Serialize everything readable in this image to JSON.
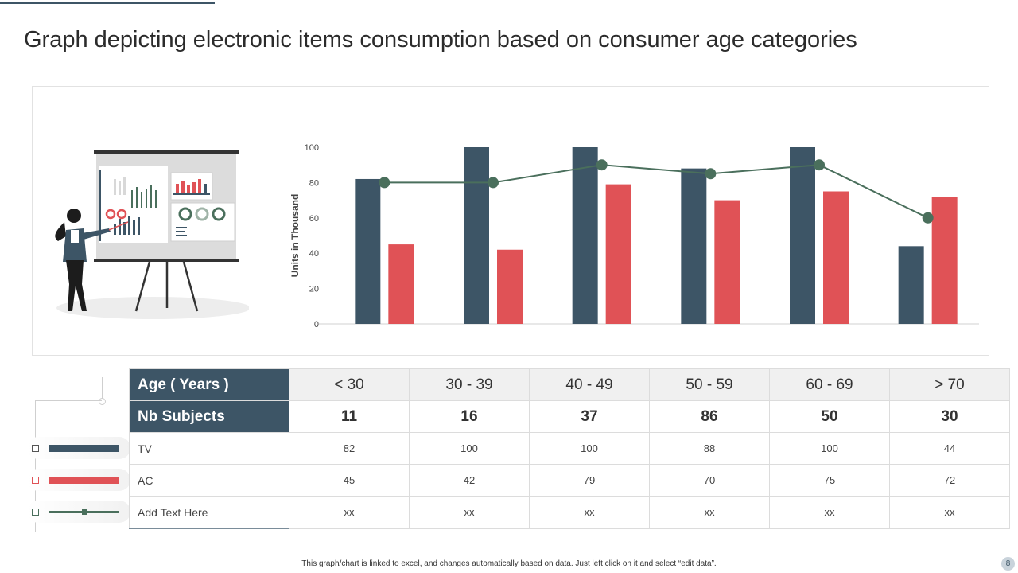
{
  "slide": {
    "title": "Graph depicting electronic items consumption based on consumer age categories",
    "footer_note": "This graph/chart is linked to excel, and changes automatically based on data. Just left click on it and select “edit data”.",
    "page_number": "8"
  },
  "colors": {
    "tv": "#3d5566",
    "ac": "#e05256",
    "line": "#4a6f5c",
    "axis_text": "#444444"
  },
  "chart_data": {
    "type": "bar",
    "categories": [
      "< 30",
      "30 - 39",
      "40 - 49",
      "50 - 59",
      "60 - 69",
      "> 70"
    ],
    "series": [
      {
        "name": "TV",
        "type": "bar",
        "values": [
          82,
          100,
          100,
          88,
          100,
          44
        ]
      },
      {
        "name": "AC",
        "type": "bar",
        "values": [
          45,
          42,
          79,
          70,
          75,
          72
        ]
      },
      {
        "name": "Add Text Here",
        "type": "line",
        "values": [
          80,
          80,
          90,
          85,
          90,
          60
        ]
      }
    ],
    "ylabel": "Units in Thousand",
    "ylim": [
      0,
      100
    ],
    "yticks": [
      0,
      20,
      40,
      60,
      80,
      100
    ],
    "grid": false
  },
  "table": {
    "age_label": "Age ( Years )",
    "subjects_label": "Nb Subjects",
    "age_groups": [
      "< 30",
      "30 - 39",
      "40 - 49",
      "50 - 59",
      "60 - 69",
      "> 70"
    ],
    "subjects": [
      "11",
      "16",
      "37",
      "86",
      "50",
      "30"
    ],
    "rows": [
      {
        "label": "TV",
        "values": [
          "82",
          "100",
          "100",
          "88",
          "100",
          "44"
        ]
      },
      {
        "label": "AC",
        "values": [
          "45",
          "42",
          "79",
          "70",
          "75",
          "72"
        ]
      },
      {
        "label": "Add Text Here",
        "values": [
          "xx",
          "xx",
          "xx",
          "xx",
          "xx",
          "xx"
        ]
      }
    ]
  }
}
